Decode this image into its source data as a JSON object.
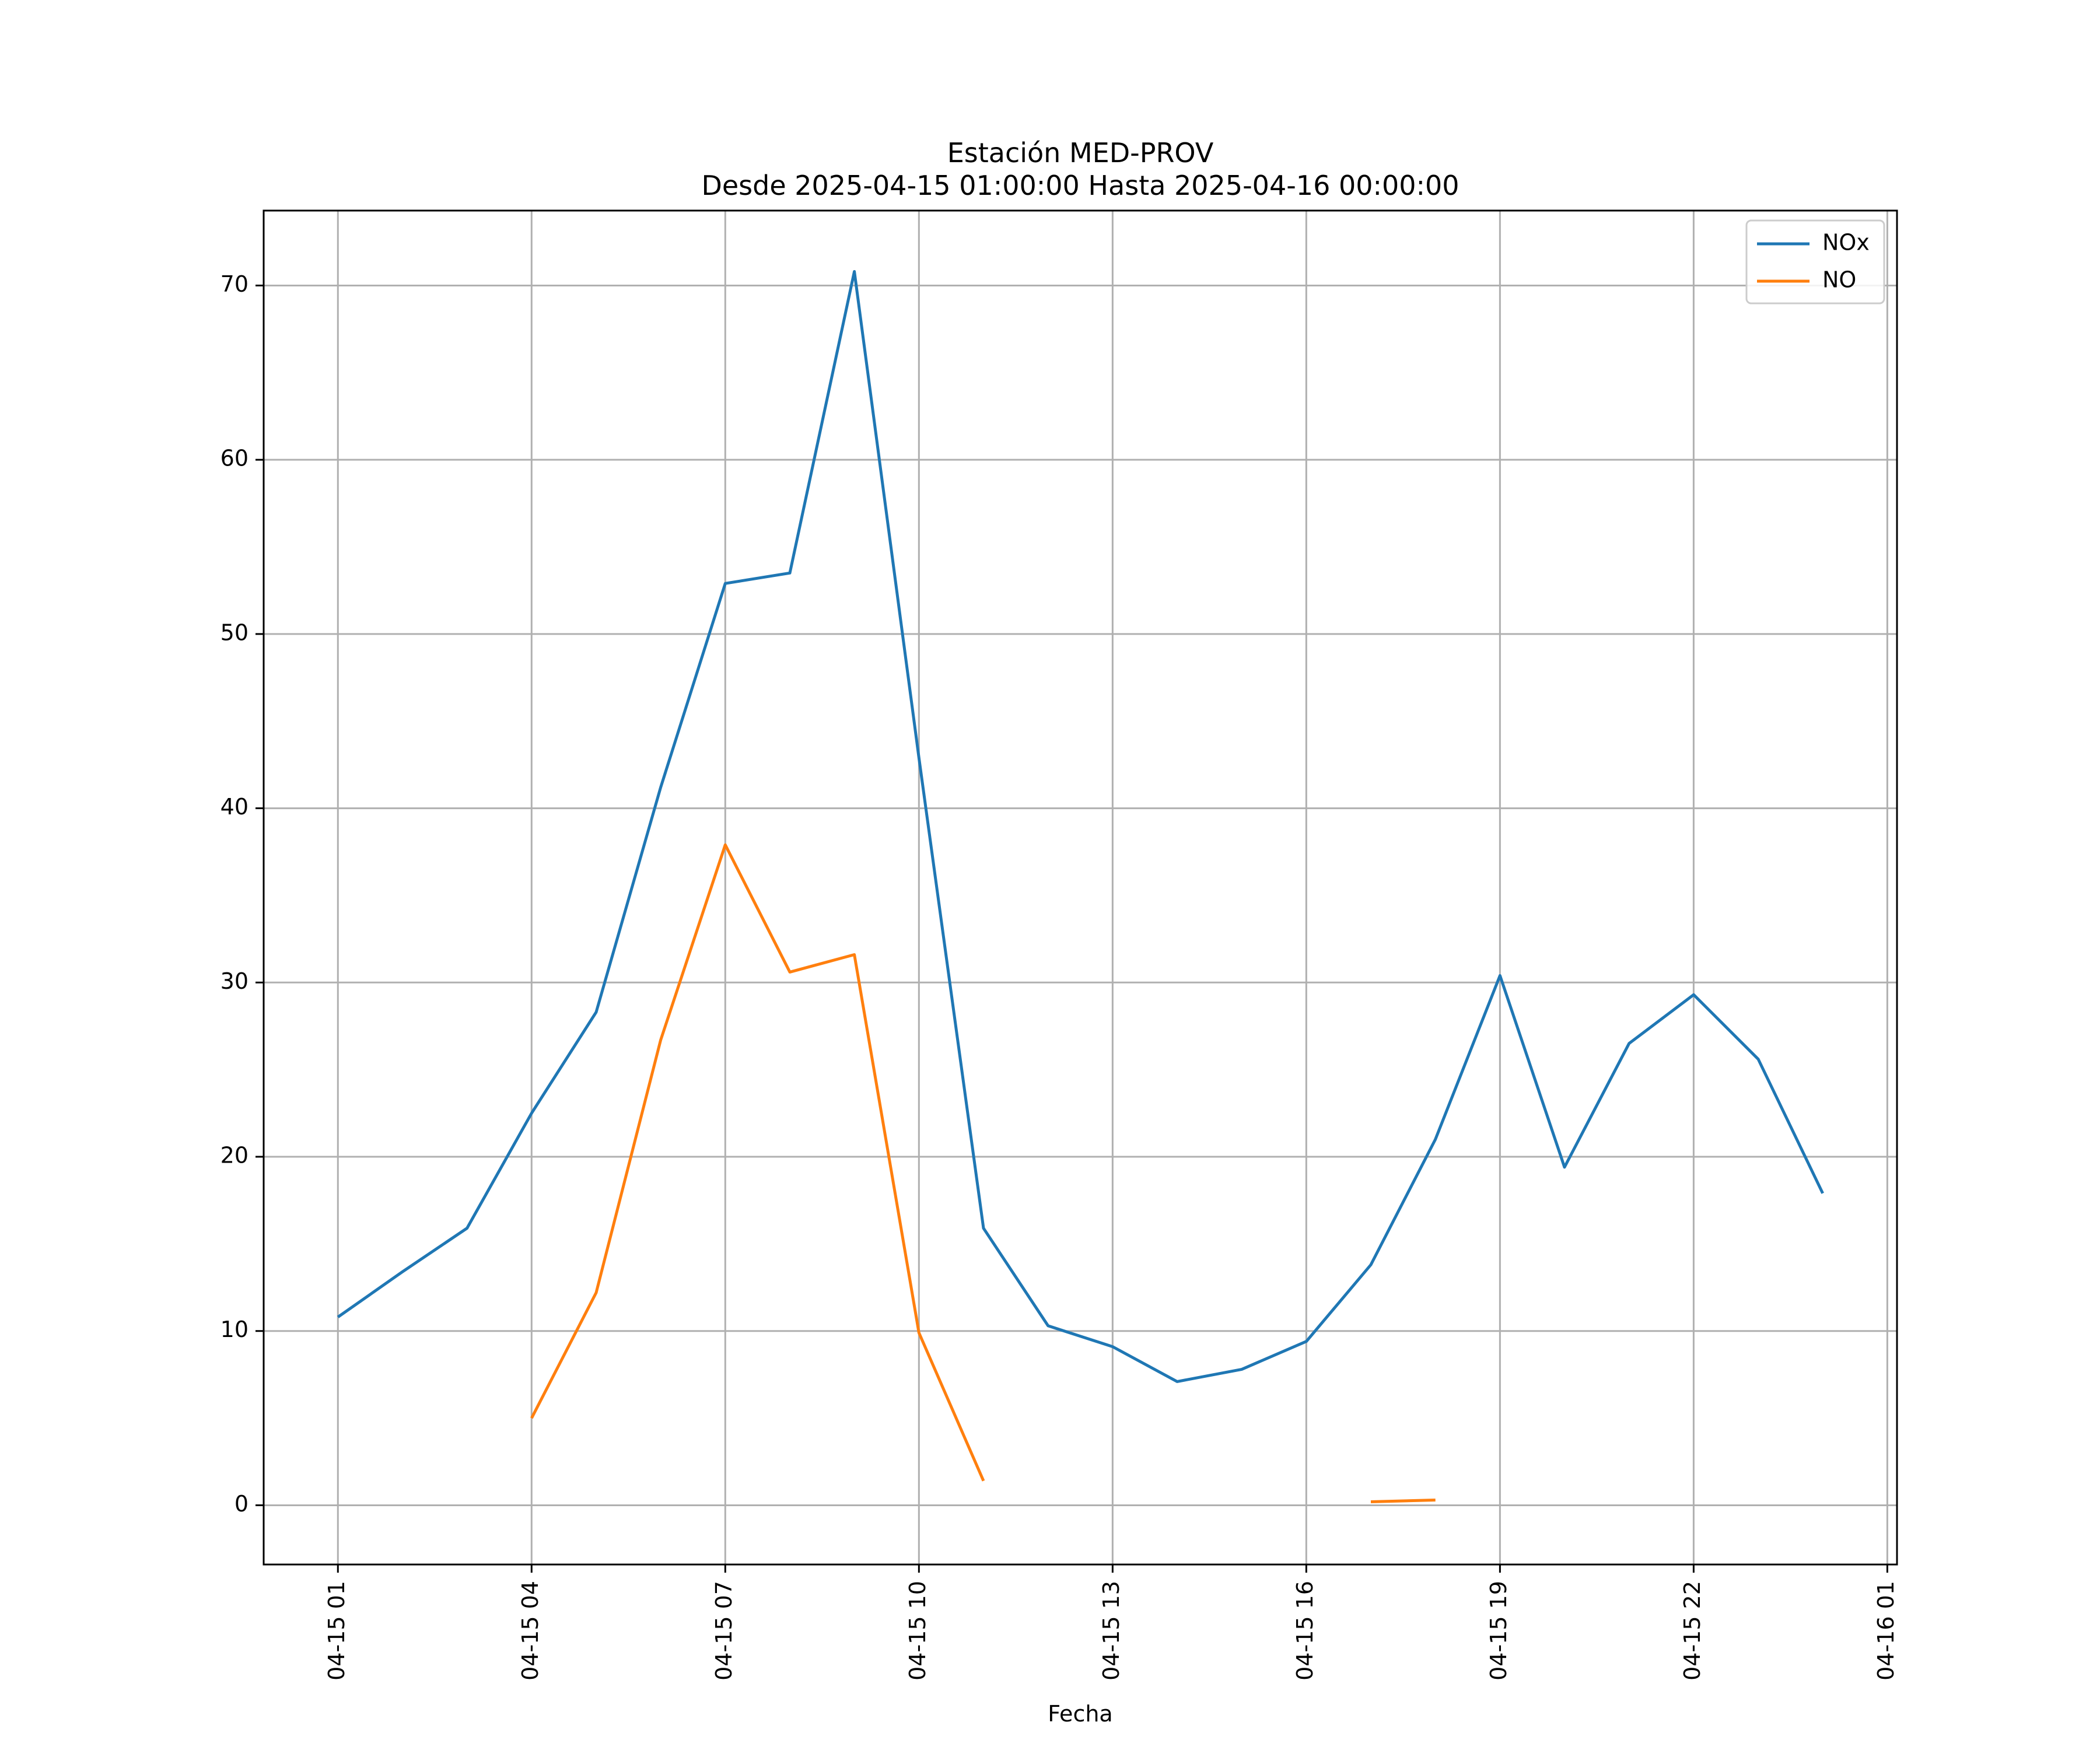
{
  "chart_data": {
    "type": "line",
    "title": "Estación MED-PROV",
    "subtitle": "Desde 2025-04-15 01:00:00 Hasta 2025-04-16 00:00:00",
    "xlabel": "Fecha",
    "ylabel": "",
    "x": [
      "2025-04-15 01:00",
      "2025-04-15 02:00",
      "2025-04-15 03:00",
      "2025-04-15 04:00",
      "2025-04-15 05:00",
      "2025-04-15 06:00",
      "2025-04-15 07:00",
      "2025-04-15 08:00",
      "2025-04-15 09:00",
      "2025-04-15 10:00",
      "2025-04-15 11:00",
      "2025-04-15 12:00",
      "2025-04-15 13:00",
      "2025-04-15 14:00",
      "2025-04-15 15:00",
      "2025-04-15 16:00",
      "2025-04-15 17:00",
      "2025-04-15 18:00",
      "2025-04-15 19:00",
      "2025-04-15 20:00",
      "2025-04-15 21:00",
      "2025-04-15 22:00",
      "2025-04-15 23:00",
      "2025-04-16 00:00"
    ],
    "xlim": [
      "2025-04-14 23:51",
      "2025-04-16 01:09"
    ],
    "ylim": [
      -3.4,
      74.3
    ],
    "x_ticks": [
      "04-15 01",
      "04-15 04",
      "04-15 07",
      "04-15 10",
      "04-15 13",
      "04-15 16",
      "04-15 19",
      "04-15 22",
      "04-16 01"
    ],
    "y_ticks": [
      0,
      10,
      20,
      30,
      40,
      50,
      60,
      70
    ],
    "grid": true,
    "legend_position": "top-right",
    "series": [
      {
        "name": "NOx",
        "color": "#1f77b4",
        "values": [
          10.8,
          13.4,
          15.9,
          22.5,
          28.3,
          41.2,
          52.9,
          53.5,
          70.8,
          42.9,
          15.9,
          10.3,
          9.1,
          7.1,
          7.8,
          9.4,
          13.8,
          21.0,
          30.4,
          19.4,
          26.5,
          29.3,
          25.6,
          17.9
        ]
      },
      {
        "name": "NO",
        "color": "#ff7f0e",
        "values": [
          null,
          null,
          null,
          5.0,
          12.2,
          26.7,
          37.9,
          30.6,
          31.6,
          9.9,
          1.4,
          null,
          null,
          null,
          null,
          null,
          0.2,
          0.3,
          null,
          null,
          null,
          null,
          null,
          null
        ]
      }
    ]
  }
}
